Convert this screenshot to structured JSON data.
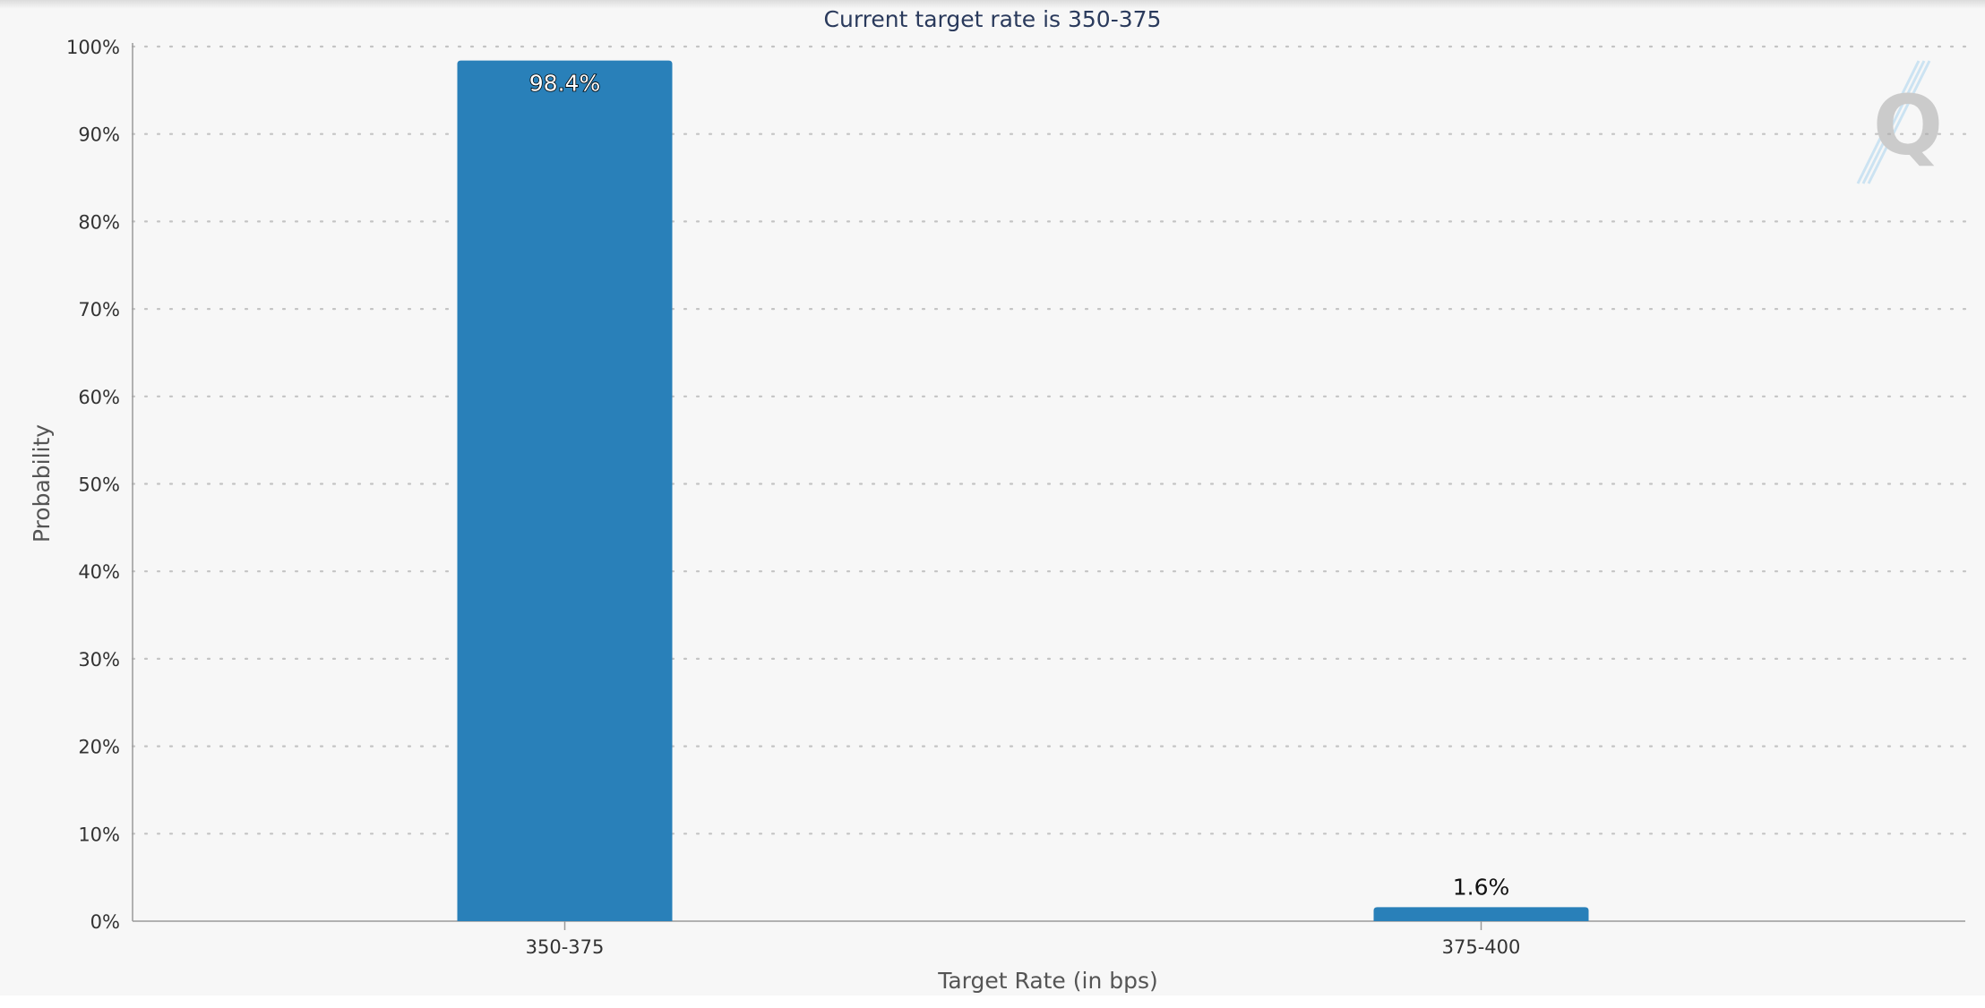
{
  "chart_data": {
    "type": "bar",
    "title": "Current target rate is 350-375",
    "xlabel": "Target Rate (in bps)",
    "ylabel": "Probability",
    "categories": [
      "350-375",
      "375-400"
    ],
    "values": [
      98.4,
      1.6
    ],
    "data_labels": [
      "98.4%",
      "1.6%"
    ],
    "ylim": [
      0,
      100
    ],
    "y_ticks": [
      "0%",
      "10%",
      "20%",
      "30%",
      "40%",
      "50%",
      "60%",
      "70%",
      "80%",
      "90%",
      "100%"
    ],
    "grid": true,
    "grid_style": "dotted",
    "bar_color": "#2980b9",
    "title_color": "#2a3a5c",
    "watermark_icon": "q-logo-watermark"
  }
}
